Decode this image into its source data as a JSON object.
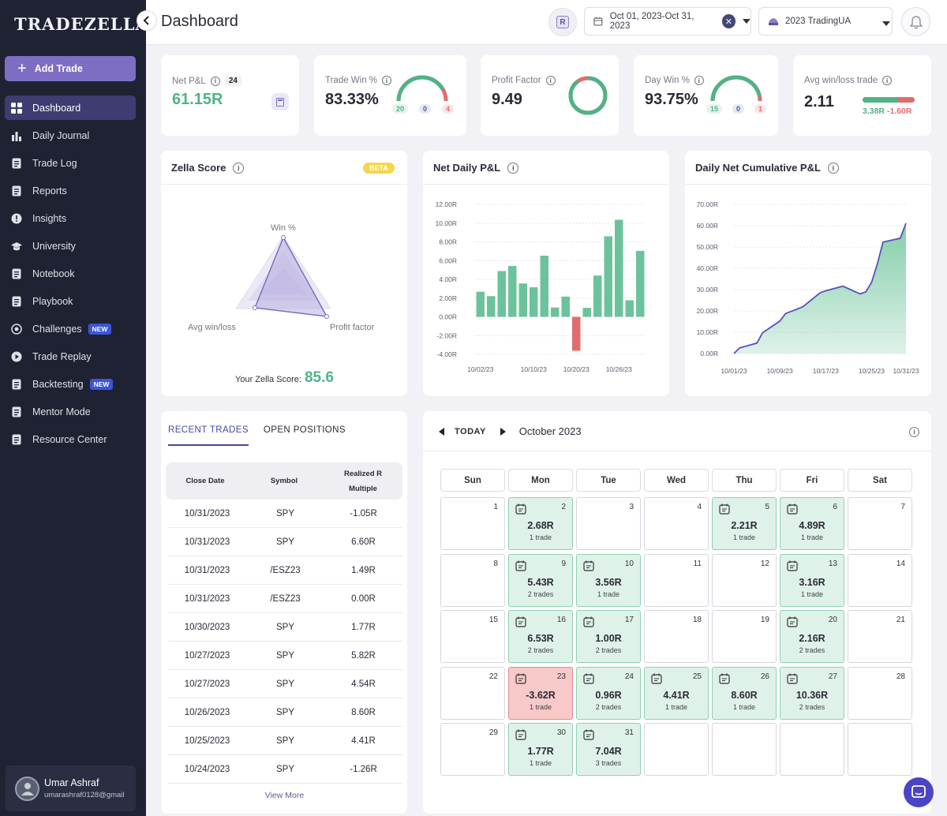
{
  "app": {
    "logo": "TRADEZELLA",
    "page_title": "Dashboard"
  },
  "sidebar": {
    "add_trade": "Add Trade",
    "items": [
      {
        "label": "Dashboard",
        "icon": "grid-icon",
        "active": true,
        "badge": ""
      },
      {
        "label": "Daily Journal",
        "icon": "bar-chart-icon",
        "active": false,
        "badge": ""
      },
      {
        "label": "Trade Log",
        "icon": "clipboard-icon",
        "active": false,
        "badge": ""
      },
      {
        "label": "Reports",
        "icon": "report-icon",
        "active": false,
        "badge": ""
      },
      {
        "label": "Insights",
        "icon": "insights-icon",
        "active": false,
        "badge": ""
      },
      {
        "label": "University",
        "icon": "graduation-cap-icon",
        "active": false,
        "badge": ""
      },
      {
        "label": "Notebook",
        "icon": "book-icon",
        "active": false,
        "badge": ""
      },
      {
        "label": "Playbook",
        "icon": "playbook-icon",
        "active": false,
        "badge": ""
      },
      {
        "label": "Challenges",
        "icon": "target-icon",
        "active": false,
        "badge": "NEW"
      },
      {
        "label": "Trade Replay",
        "icon": "play-icon",
        "active": false,
        "badge": ""
      },
      {
        "label": "Backtesting",
        "icon": "backtest-icon",
        "active": false,
        "badge": "NEW"
      },
      {
        "label": "Mentor Mode",
        "icon": "mentor-icon",
        "active": false,
        "badge": ""
      },
      {
        "label": "Resource Center",
        "icon": "resource-icon",
        "active": false,
        "badge": ""
      }
    ],
    "user": {
      "name": "Umar Ashraf",
      "email": "umarashraf0128@gmail"
    }
  },
  "topbar": {
    "r_button": "R",
    "date_range": "Oct 01, 2023-Oct 31, 2023",
    "account": "2023 TradingUA"
  },
  "stats": {
    "net_pnl": {
      "label": "Net P&L",
      "count": "24",
      "value": "61.15R"
    },
    "trade_win": {
      "label": "Trade Win %",
      "value": "83.33%",
      "win": "20",
      "be": "0",
      "loss": "4",
      "win_fraction": 0.833
    },
    "profit_factor": {
      "label": "Profit Factor",
      "value": "9.49",
      "win_fraction": 0.9
    },
    "day_win": {
      "label": "Day Win %",
      "value": "93.75%",
      "win": "15",
      "be": "0",
      "loss": "1",
      "win_fraction": 0.9375
    },
    "avg_win_loss": {
      "label": "Avg win/loss trade",
      "value": "2.11",
      "avg_win": "3.38R",
      "avg_loss": "-1.60R",
      "win_fraction": 0.68
    }
  },
  "zella": {
    "title": "Zella Score",
    "badge": "BETA",
    "axis_labels": [
      "Win %",
      "Profit factor",
      "Avg win/loss"
    ],
    "score_label": "Your Zella Score:",
    "score": "85.6"
  },
  "daily_pnl": {
    "title": "Net Daily P&L"
  },
  "cumulative": {
    "title": "Daily Net Cumulative P&L"
  },
  "chart_data": [
    {
      "type": "bar",
      "title": "Net Daily P&L",
      "y_ticks": [
        "12.00R",
        "10.00R",
        "8.00R",
        "6.00R",
        "4.00R",
        "2.00R",
        "0.00R",
        "-2.00R",
        "-4.00R"
      ],
      "x_ticks": [
        "10/02/23",
        "10/10/23",
        "10/20/23",
        "10/26/23"
      ],
      "ylim": [
        -4,
        12
      ],
      "categories": [
        "10/02",
        "10/05",
        "10/06",
        "10/09",
        "10/10",
        "10/13",
        "10/16",
        "10/17",
        "10/20",
        "10/23",
        "10/24",
        "10/25",
        "10/26",
        "10/27",
        "10/30",
        "10/31"
      ],
      "values": [
        2.68,
        2.21,
        4.89,
        5.43,
        3.56,
        3.16,
        6.53,
        1.0,
        2.16,
        -3.62,
        0.96,
        4.41,
        8.6,
        10.36,
        1.77,
        7.04
      ],
      "colors": {
        "positive": "#6cc39b",
        "negative": "#e06d6d"
      }
    },
    {
      "type": "area",
      "title": "Daily Net Cumulative P&L",
      "y_ticks": [
        "70.00R",
        "60.00R",
        "50.00R",
        "40.00R",
        "30.00R",
        "20.00R",
        "10.00R",
        "0.00R"
      ],
      "x_ticks": [
        "10/01/23",
        "10/09/23",
        "10/17/23",
        "10/25/23",
        "10/31/23"
      ],
      "ylim": [
        0,
        70
      ],
      "x": [
        "10/02",
        "10/05",
        "10/06",
        "10/09",
        "10/10",
        "10/13",
        "10/16",
        "10/17",
        "10/20",
        "10/23",
        "10/24",
        "10/25",
        "10/26",
        "10/27",
        "10/30",
        "10/31"
      ],
      "values": [
        2.68,
        4.89,
        9.78,
        15.21,
        18.77,
        21.93,
        28.46,
        29.46,
        31.62,
        28.0,
        28.96,
        33.37,
        41.97,
        52.33,
        54.1,
        61.15
      ],
      "colors": {
        "line": "#5a4fbf",
        "fill": "#7dcba5"
      }
    }
  ],
  "recent": {
    "tabs": [
      "RECENT TRADES",
      "OPEN POSITIONS"
    ],
    "headers": [
      "Close Date",
      "Symbol",
      "Realized R",
      "Multiple"
    ],
    "rows": [
      {
        "date": "10/31/2023",
        "symbol": "SPY",
        "r": "-1.05R"
      },
      {
        "date": "10/31/2023",
        "symbol": "SPY",
        "r": "6.60R"
      },
      {
        "date": "10/31/2023",
        "symbol": "/ESZ23",
        "r": "1.49R"
      },
      {
        "date": "10/31/2023",
        "symbol": "/ESZ23",
        "r": "0.00R"
      },
      {
        "date": "10/30/2023",
        "symbol": "SPY",
        "r": "1.77R"
      },
      {
        "date": "10/27/2023",
        "symbol": "SPY",
        "r": "5.82R"
      },
      {
        "date": "10/27/2023",
        "symbol": "SPY",
        "r": "4.54R"
      },
      {
        "date": "10/26/2023",
        "symbol": "SPY",
        "r": "8.60R"
      },
      {
        "date": "10/25/2023",
        "symbol": "SPY",
        "r": "4.41R"
      },
      {
        "date": "10/24/2023",
        "symbol": "SPY",
        "r": "-1.26R"
      }
    ],
    "view_more": "View More"
  },
  "calendar": {
    "today": "TODAY",
    "month": "October 2023",
    "weekdays": [
      "Sun",
      "Mon",
      "Tue",
      "Wed",
      "Thu",
      "Fri",
      "Sat"
    ],
    "days": [
      {
        "d": "1",
        "amt": "",
        "cnt": "",
        "st": ""
      },
      {
        "d": "2",
        "amt": "2.68R",
        "cnt": "1 trade",
        "st": "pos"
      },
      {
        "d": "3",
        "amt": "",
        "cnt": "",
        "st": ""
      },
      {
        "d": "4",
        "amt": "",
        "cnt": "",
        "st": ""
      },
      {
        "d": "5",
        "amt": "2.21R",
        "cnt": "1 trade",
        "st": "pos"
      },
      {
        "d": "6",
        "amt": "4.89R",
        "cnt": "1 trade",
        "st": "pos"
      },
      {
        "d": "7",
        "amt": "",
        "cnt": "",
        "st": ""
      },
      {
        "d": "8",
        "amt": "",
        "cnt": "",
        "st": ""
      },
      {
        "d": "9",
        "amt": "5.43R",
        "cnt": "2 trades",
        "st": "pos"
      },
      {
        "d": "10",
        "amt": "3.56R",
        "cnt": "1 trade",
        "st": "pos"
      },
      {
        "d": "11",
        "amt": "",
        "cnt": "",
        "st": ""
      },
      {
        "d": "12",
        "amt": "",
        "cnt": "",
        "st": ""
      },
      {
        "d": "13",
        "amt": "3.16R",
        "cnt": "1 trade",
        "st": "pos"
      },
      {
        "d": "14",
        "amt": "",
        "cnt": "",
        "st": ""
      },
      {
        "d": "15",
        "amt": "",
        "cnt": "",
        "st": ""
      },
      {
        "d": "16",
        "amt": "6.53R",
        "cnt": "2 trades",
        "st": "pos"
      },
      {
        "d": "17",
        "amt": "1.00R",
        "cnt": "2 trades",
        "st": "pos"
      },
      {
        "d": "18",
        "amt": "",
        "cnt": "",
        "st": ""
      },
      {
        "d": "19",
        "amt": "",
        "cnt": "",
        "st": ""
      },
      {
        "d": "20",
        "amt": "2.16R",
        "cnt": "2 trades",
        "st": "pos"
      },
      {
        "d": "21",
        "amt": "",
        "cnt": "",
        "st": ""
      },
      {
        "d": "22",
        "amt": "",
        "cnt": "",
        "st": ""
      },
      {
        "d": "23",
        "amt": "-3.62R",
        "cnt": "1 trade",
        "st": "neg"
      },
      {
        "d": "24",
        "amt": "0.96R",
        "cnt": "2 trades",
        "st": "pos"
      },
      {
        "d": "25",
        "amt": "4.41R",
        "cnt": "1 trade",
        "st": "pos"
      },
      {
        "d": "26",
        "amt": "8.60R",
        "cnt": "1 trade",
        "st": "pos"
      },
      {
        "d": "27",
        "amt": "10.36R",
        "cnt": "2 trades",
        "st": "pos"
      },
      {
        "d": "28",
        "amt": "",
        "cnt": "",
        "st": ""
      },
      {
        "d": "29",
        "amt": "",
        "cnt": "",
        "st": ""
      },
      {
        "d": "30",
        "amt": "1.77R",
        "cnt": "1 trade",
        "st": "pos"
      },
      {
        "d": "31",
        "amt": "7.04R",
        "cnt": "3 trades",
        "st": "pos"
      },
      {
        "d": "",
        "amt": "",
        "cnt": "",
        "st": ""
      },
      {
        "d": "",
        "amt": "",
        "cnt": "",
        "st": ""
      },
      {
        "d": "",
        "amt": "",
        "cnt": "",
        "st": ""
      },
      {
        "d": "",
        "amt": "",
        "cnt": "",
        "st": ""
      }
    ]
  },
  "colors": {
    "accent": "#7d6ec3",
    "green": "#4fb386",
    "red": "#e06d6d",
    "sidebar": "#1f2233"
  }
}
